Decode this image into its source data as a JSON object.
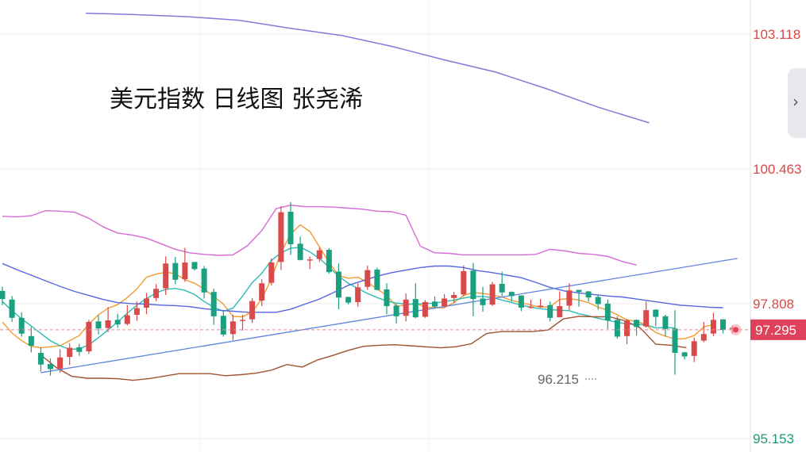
{
  "chart_data": {
    "type": "candlestick",
    "title": "美元指数 日线图 张尧浠",
    "ylim": [
      95.153,
      103.118
    ],
    "y_ticks": [
      {
        "value": 103.118,
        "label": "103.118",
        "color": "#d94848"
      },
      {
        "value": 100.463,
        "label": "100.463",
        "color": "#d94848"
      },
      {
        "value": 97.808,
        "label": "97.808",
        "color": "#d94848"
      },
      {
        "value": 95.153,
        "label": "95.153",
        "color": "#1a9a7a"
      }
    ],
    "current_price": {
      "value": 97.295,
      "label": "97.295",
      "color": "#e0415a"
    },
    "low_annotation": {
      "value": 96.215,
      "label": "96.215"
    },
    "colors": {
      "up": "#d94a4a",
      "down": "#1aa07f"
    },
    "candles": [
      [
        98.06,
        97.9,
        98.14,
        97.78
      ],
      [
        97.89,
        97.53,
        97.96,
        97.45
      ],
      [
        97.53,
        97.22,
        97.64,
        97.16
      ],
      [
        97.17,
        96.98,
        97.35,
        96.85
      ],
      [
        96.84,
        96.61,
        96.95,
        96.47
      ],
      [
        96.62,
        96.52,
        96.73,
        96.39
      ],
      [
        96.53,
        96.75,
        96.91,
        96.45
      ],
      [
        96.76,
        96.94,
        97.03,
        96.6
      ],
      [
        96.95,
        96.86,
        97.02,
        96.78
      ],
      [
        96.87,
        97.45,
        97.49,
        96.82
      ],
      [
        97.46,
        97.32,
        97.58,
        97.2
      ],
      [
        97.33,
        97.48,
        97.74,
        97.25
      ],
      [
        97.49,
        97.4,
        97.61,
        97.33
      ],
      [
        97.41,
        97.58,
        97.78,
        97.38
      ],
      [
        97.59,
        97.72,
        97.85,
        97.47
      ],
      [
        97.73,
        97.91,
        98.02,
        97.6
      ],
      [
        97.92,
        98.1,
        98.19,
        97.86
      ],
      [
        98.11,
        98.6,
        98.74,
        97.98
      ],
      [
        98.61,
        98.28,
        98.73,
        98.19
      ],
      [
        98.29,
        98.62,
        98.91,
        98.24
      ],
      [
        98.63,
        98.49,
        98.62,
        98.46
      ],
      [
        98.5,
        98.03,
        98.55,
        97.91
      ],
      [
        98.04,
        97.56,
        98.1,
        97.39
      ],
      [
        97.57,
        97.2,
        97.65,
        97.16
      ],
      [
        97.21,
        97.46,
        97.59,
        97.09
      ],
      [
        97.47,
        97.49,
        97.59,
        97.28
      ],
      [
        97.5,
        97.86,
        97.92,
        97.43
      ],
      [
        97.87,
        98.21,
        98.29,
        97.76
      ],
      [
        98.22,
        98.62,
        98.7,
        98.17
      ],
      [
        98.63,
        99.61,
        99.73,
        98.47
      ],
      [
        99.62,
        98.98,
        99.81,
        98.77
      ],
      [
        98.99,
        98.67,
        99.13,
        98.66
      ],
      [
        98.68,
        98.68,
        98.74,
        98.49
      ],
      [
        98.69,
        98.86,
        98.91,
        98.63
      ],
      [
        98.87,
        98.43,
        98.9,
        98.4
      ],
      [
        98.44,
        97.93,
        98.6,
        97.7
      ],
      [
        97.94,
        97.83,
        97.95,
        97.79
      ],
      [
        97.84,
        98.13,
        98.21,
        97.75
      ],
      [
        98.14,
        98.47,
        98.56,
        98.08
      ],
      [
        98.48,
        98.08,
        98.52,
        98.07
      ],
      [
        98.09,
        97.76,
        98.21,
        97.6
      ],
      [
        97.77,
        97.56,
        97.81,
        97.42
      ],
      [
        97.57,
        97.89,
        98.01,
        97.46
      ],
      [
        97.9,
        97.54,
        98.21,
        97.52
      ],
      [
        97.55,
        97.84,
        97.88,
        97.53
      ],
      [
        97.85,
        97.75,
        97.95,
        97.71
      ],
      [
        97.76,
        97.91,
        98.0,
        97.74
      ],
      [
        97.92,
        97.98,
        98.04,
        97.83
      ],
      [
        97.99,
        98.45,
        98.56,
        97.95
      ],
      [
        98.46,
        97.9,
        98.61,
        97.56
      ],
      [
        97.91,
        97.78,
        98.14,
        97.65
      ],
      [
        97.79,
        98.19,
        98.24,
        97.76
      ],
      [
        98.2,
        98.03,
        98.44,
        97.96
      ],
      [
        98.04,
        97.96,
        98.05,
        97.85
      ],
      [
        97.97,
        97.73,
        97.97,
        97.66
      ],
      [
        97.74,
        97.75,
        97.89,
        97.71
      ],
      [
        97.76,
        97.77,
        97.9,
        97.73
      ],
      [
        97.78,
        97.53,
        97.85,
        97.46
      ],
      [
        97.54,
        97.76,
        98.05,
        97.58
      ],
      [
        97.77,
        98.07,
        98.21,
        97.68
      ],
      [
        98.08,
        98.04,
        98.08,
        97.75
      ],
      [
        98.05,
        97.93,
        98.06,
        97.85
      ],
      [
        97.94,
        97.8,
        97.99,
        97.69
      ],
      [
        97.81,
        97.48,
        97.89,
        97.31
      ],
      [
        97.49,
        97.16,
        97.56,
        97.12
      ],
      [
        97.17,
        97.48,
        97.51,
        97.01
      ],
      [
        97.49,
        97.35,
        97.5,
        97.18
      ],
      [
        97.36,
        97.68,
        97.85,
        97.34
      ],
      [
        97.69,
        97.55,
        97.7,
        97.36
      ],
      [
        97.56,
        97.31,
        97.59,
        97.16
      ],
      [
        97.32,
        96.84,
        97.68,
        96.41
      ],
      [
        96.85,
        96.77,
        96.86,
        96.71
      ],
      [
        96.78,
        97.07,
        97.14,
        96.66
      ],
      [
        97.08,
        97.21,
        97.45,
        97.05
      ],
      [
        97.22,
        97.49,
        97.63,
        97.17
      ],
      [
        97.5,
        97.29,
        97.45,
        97.22
      ],
      [
        97.3,
        97.34,
        97.38,
        97.22
      ]
    ],
    "series": [
      {
        "name": "MA-fast",
        "color": "#f39a2f",
        "values": [
          97.45,
          97.23,
          97.08,
          96.97,
          96.94,
          96.96,
          96.98,
          97.08,
          97.18,
          97.41,
          97.59,
          97.72,
          97.79,
          97.93,
          98.1,
          98.33,
          98.39,
          98.43,
          98.4,
          98.28,
          98.21,
          98.1,
          97.95,
          97.8,
          97.56,
          97.55,
          97.65,
          97.9,
          98.3,
          98.82,
          99.18,
          99.36,
          99.23,
          98.93,
          98.62,
          98.36,
          98.31,
          98.33,
          98.23,
          98.1,
          97.97,
          97.76,
          97.78,
          97.82,
          97.74,
          97.73,
          97.73,
          97.83,
          97.97,
          98.03,
          98.01,
          97.98,
          97.94,
          97.87,
          97.83,
          97.78,
          97.74,
          97.75,
          97.89,
          97.91,
          97.88,
          97.83,
          97.74,
          97.68,
          97.59,
          97.49,
          97.46,
          97.39,
          97.24,
          97.17,
          97.11,
          97.12,
          97.18,
          97.35,
          97.4
        ]
      },
      {
        "name": "MA-mid",
        "color": "#2cbcb4",
        "values": [
          97.85,
          97.67,
          97.51,
          97.37,
          97.22,
          97.08,
          96.98,
          96.91,
          96.92,
          97.0,
          97.14,
          97.29,
          97.45,
          97.62,
          97.78,
          97.91,
          98.02,
          98.09,
          98.11,
          98.07,
          97.99,
          97.85,
          97.74,
          97.66,
          97.72,
          97.96,
          98.22,
          98.41,
          98.66,
          98.81,
          98.9,
          98.92,
          98.83,
          98.7,
          98.53,
          98.35,
          98.21,
          98.11,
          98.01,
          97.93,
          97.86,
          97.82,
          97.8,
          97.8,
          97.81,
          97.82,
          97.85,
          97.88,
          97.92,
          97.95,
          97.95,
          97.93,
          97.88,
          97.83,
          97.78,
          97.74,
          97.71,
          97.69,
          97.68,
          97.67,
          97.61,
          97.57,
          97.52,
          97.48,
          97.44,
          97.41,
          97.4,
          97.39,
          97.33,
          97.34,
          97.33
        ]
      },
      {
        "name": "MA-slow",
        "color": "#5566e0",
        "values": [
          98.6,
          98.48,
          98.37,
          98.26,
          98.15,
          98.05,
          97.97,
          97.89,
          97.83,
          97.81,
          97.8,
          97.78,
          97.77,
          97.75,
          97.71,
          97.68,
          97.66,
          97.64,
          97.64,
          97.64,
          97.7,
          97.8,
          97.9,
          98.03,
          98.17,
          98.26,
          98.35,
          98.42,
          98.47,
          98.52,
          98.55,
          98.55,
          98.52,
          98.46,
          98.42,
          98.37,
          98.32,
          98.23,
          98.13,
          98.06,
          98.02,
          97.99,
          97.96,
          97.94,
          97.9,
          97.86,
          97.82,
          97.78,
          97.76,
          97.74,
          97.73
        ]
      },
      {
        "name": "Upper band",
        "color": "#d66ad6",
        "values": [
          99.53,
          99.52,
          99.54,
          99.64,
          99.63,
          99.61,
          99.49,
          99.32,
          99.2,
          99.16,
          99.1,
          98.99,
          98.88,
          98.81,
          98.78,
          98.76,
          98.77,
          98.95,
          99.25,
          99.68,
          99.75,
          99.72,
          99.72,
          99.71,
          99.69,
          99.67,
          99.63,
          99.62,
          99.55,
          98.94,
          98.81,
          98.8,
          98.77,
          98.77,
          98.77,
          98.77,
          98.77,
          98.78,
          98.88,
          98.85,
          98.8,
          98.78,
          98.74,
          98.64,
          98.57
        ]
      },
      {
        "name": "Lower band",
        "color": "#a0522d",
        "values": [
          96.8,
          96.55,
          96.38,
          96.34,
          96.34,
          96.33,
          96.3,
          96.33,
          96.38,
          96.43,
          96.43,
          96.43,
          96.39,
          96.41,
          96.44,
          96.5,
          96.61,
          96.56,
          96.7,
          96.79,
          96.89,
          96.97,
          96.99,
          97.0,
          96.98,
          96.96,
          96.94,
          96.96,
          97.02,
          97.22,
          97.26,
          97.26,
          97.26,
          97.29,
          97.51,
          97.56,
          97.55,
          97.55,
          97.47,
          97.33,
          97.01,
          96.99,
          96.94
        ]
      },
      {
        "name": "Wave/Trend",
        "color": "#8a76d8",
        "values": [
          103.53,
          103.5,
          103.46,
          103.39,
          103.23,
          103.09,
          102.87,
          102.61,
          102.37,
          102.04,
          101.68,
          101.37
        ]
      }
    ],
    "trendline": {
      "color": "#5f84e0",
      "from": [
        4,
        96.45
      ],
      "to": [
        76,
        98.7
      ]
    },
    "grid": true
  },
  "ui": {
    "title": "美元指数 日线图 张尧浠",
    "side_toggle": "›"
  }
}
